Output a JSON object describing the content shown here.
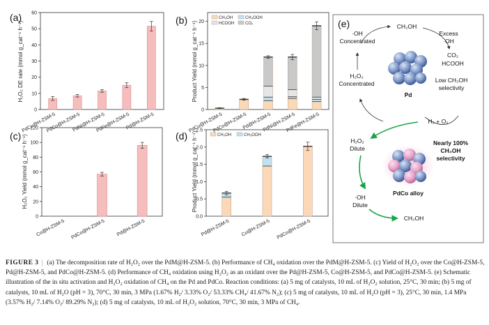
{
  "figure": {
    "caption_label": "FIGURE 3",
    "caption_text": "(a) The decomposition rate of H₂O₂ over the PdM@H-ZSM-5. (b) Performance of CH₄ oxidation over the PdM@H-ZSM-5. (c) Yield of H₂O₂ over the Co@H-ZSM-5, Pd@H-ZSM-5, and PdCo@H-ZSM-5. (d) Performance of CH₄ oxidation using H₂O₂ as an oxidant over the Pd@H-ZSM-5, Co@H-ZSM-5, and PdCo@H-ZSM-5. (e) Schematic illustration of the in situ activation and H₂O₂ oxidation of CH₄ on the Pd and PdCo. Reaction conditions: (a) 5 mg of catalysts, 10 mL of H₂O₂ solution, 25°C, 30 min; (b) 5 mg of catalysts, 10 mL of H₂O (pH = 3), 70°C, 30 min, 3 MPa (1.67% H₂/ 3.33% O₂/ 53.33% CH₄/ 41.67% N₂); (c) 5 mg of catalysts, 10 mL of H₂O (pH = 3), 25°C, 30 min, 1.4 MPa (3.57% H₂/ 7.14% O₂/ 89.29% N₂); (d) 5 mg of catalysts, 10 mL of H₂O₂ solution, 70°C, 30 min, 3 MPa of CH₄."
  },
  "chart_data": [
    {
      "panel": "(a)",
      "type": "bar",
      "ylabel": "H₂O₂ DE rate (mmol g_cat⁻¹ h⁻¹)",
      "ylim": [
        0,
        60
      ],
      "yticks": [
        0,
        10,
        20,
        30,
        40,
        50,
        60
      ],
      "categories": [
        "PdCu@H-ZSM-5",
        "PdCo@H-ZSM-5",
        "PdNi@H-ZSM-5",
        "PdFe@H-ZSM-5",
        "Pd@H-ZSM-5"
      ],
      "values": [
        6.8,
        8.5,
        11.5,
        15.0,
        51.5
      ],
      "errors": [
        1.2,
        0.8,
        0.8,
        1.5,
        3.0
      ],
      "color": "#f6bdbd"
    },
    {
      "panel": "(b)",
      "type": "bar",
      "stacked": true,
      "ylabel": "Product Yield (mmol g_cat⁻¹ h⁻¹)",
      "ylim": [
        0,
        22
      ],
      "yticks": [
        0,
        5,
        10,
        15,
        20
      ],
      "legend": [
        "CH₃OH",
        "CH₃OOH",
        "HCOOH",
        "CO₂"
      ],
      "categories": [
        "PdCu@H-ZSM-5",
        "PdCo@H-ZSM-5",
        "Pd@H-ZSM-5",
        "PdNi@H-ZSM-5",
        "PdFe@H-ZSM-5"
      ],
      "series": [
        {
          "name": "CH₃OH",
          "values": [
            0.3,
            2.3,
            2.0,
            2.5,
            1.8
          ],
          "color": "#fbd9b8"
        },
        {
          "name": "CH₃OOH",
          "values": [
            0.0,
            0.0,
            0.8,
            0.4,
            0.5
          ],
          "color": "#bfe1f2"
        },
        {
          "name": "HCOOH",
          "values": [
            0.0,
            0.0,
            2.5,
            1.6,
            0.5
          ],
          "color": "#e6e6e6"
        },
        {
          "name": "CO₂",
          "values": [
            0.0,
            0.0,
            6.6,
            7.4,
            16.2
          ],
          "color": "#c9c9c9"
        }
      ],
      "totals": [
        0.3,
        2.3,
        11.9,
        11.9,
        19.0
      ],
      "errors": [
        0.1,
        0.2,
        0.3,
        0.6,
        0.9
      ]
    },
    {
      "panel": "(c)",
      "type": "bar",
      "ylabel": "H₂O₂ Yield (mmol g_cat⁻¹ h⁻¹)",
      "ylim": [
        0,
        120
      ],
      "yticks": [
        0,
        20,
        40,
        60,
        80,
        100,
        120
      ],
      "categories": [
        "Co@H-ZSM-5",
        "PdCo@H-ZSM-5",
        "Pd@H-ZSM-5"
      ],
      "values": [
        0,
        57,
        96
      ],
      "errors": [
        0,
        2.5,
        4
      ],
      "color": "#f6bdbd"
    },
    {
      "panel": "(d)",
      "type": "bar",
      "stacked": true,
      "ylabel": "Product Yield (mmol g_cat⁻¹ h⁻¹)",
      "ylim": [
        0,
        2.5
      ],
      "yticks": [
        0.0,
        0.5,
        1.0,
        1.5,
        2.0,
        2.5
      ],
      "legend": [
        "CH₃OH",
        "CH₃OOH"
      ],
      "categories": [
        "Pd@H-ZSM-5",
        "Co@H-ZSM-5",
        "PdCo@H-ZSM-5"
      ],
      "series": [
        {
          "name": "CH₃OH",
          "values": [
            0.55,
            1.45,
            2.02
          ],
          "color": "#fbd9b8"
        },
        {
          "name": "CH₃OOH",
          "values": [
            0.12,
            0.28,
            0.0
          ],
          "color": "#bfe1f2"
        }
      ],
      "totals": [
        0.67,
        1.73,
        2.02
      ],
      "errors": [
        0.05,
        0.05,
        0.12
      ]
    }
  ],
  "schematic": {
    "panel": "(e)",
    "oh_conc": [
      "·OH",
      "Concentrated"
    ],
    "ch3oh_top": "CH₃OH",
    "excess_oh": [
      "Excess",
      "·OH"
    ],
    "products": [
      "CO₂",
      "HCOOH"
    ],
    "h2o2_conc": [
      "H₂O₂",
      "Concentrated"
    ],
    "pd_label": "Pd",
    "low_sel": [
      "Low CH₃OH",
      "selectivity"
    ],
    "h2_o2": "H₂ + O₂",
    "h2o2_dilute": [
      "H₂O₂",
      "Dilute"
    ],
    "nearly": [
      "Nearly 100%",
      "CH₃OH",
      "selectivity"
    ],
    "alloy_label": "PdCo alloy",
    "oh_dilute": [
      "·OH",
      "Dilute"
    ],
    "ch3oh_bottom": "CH₃OH",
    "green": "#1aa34a"
  }
}
